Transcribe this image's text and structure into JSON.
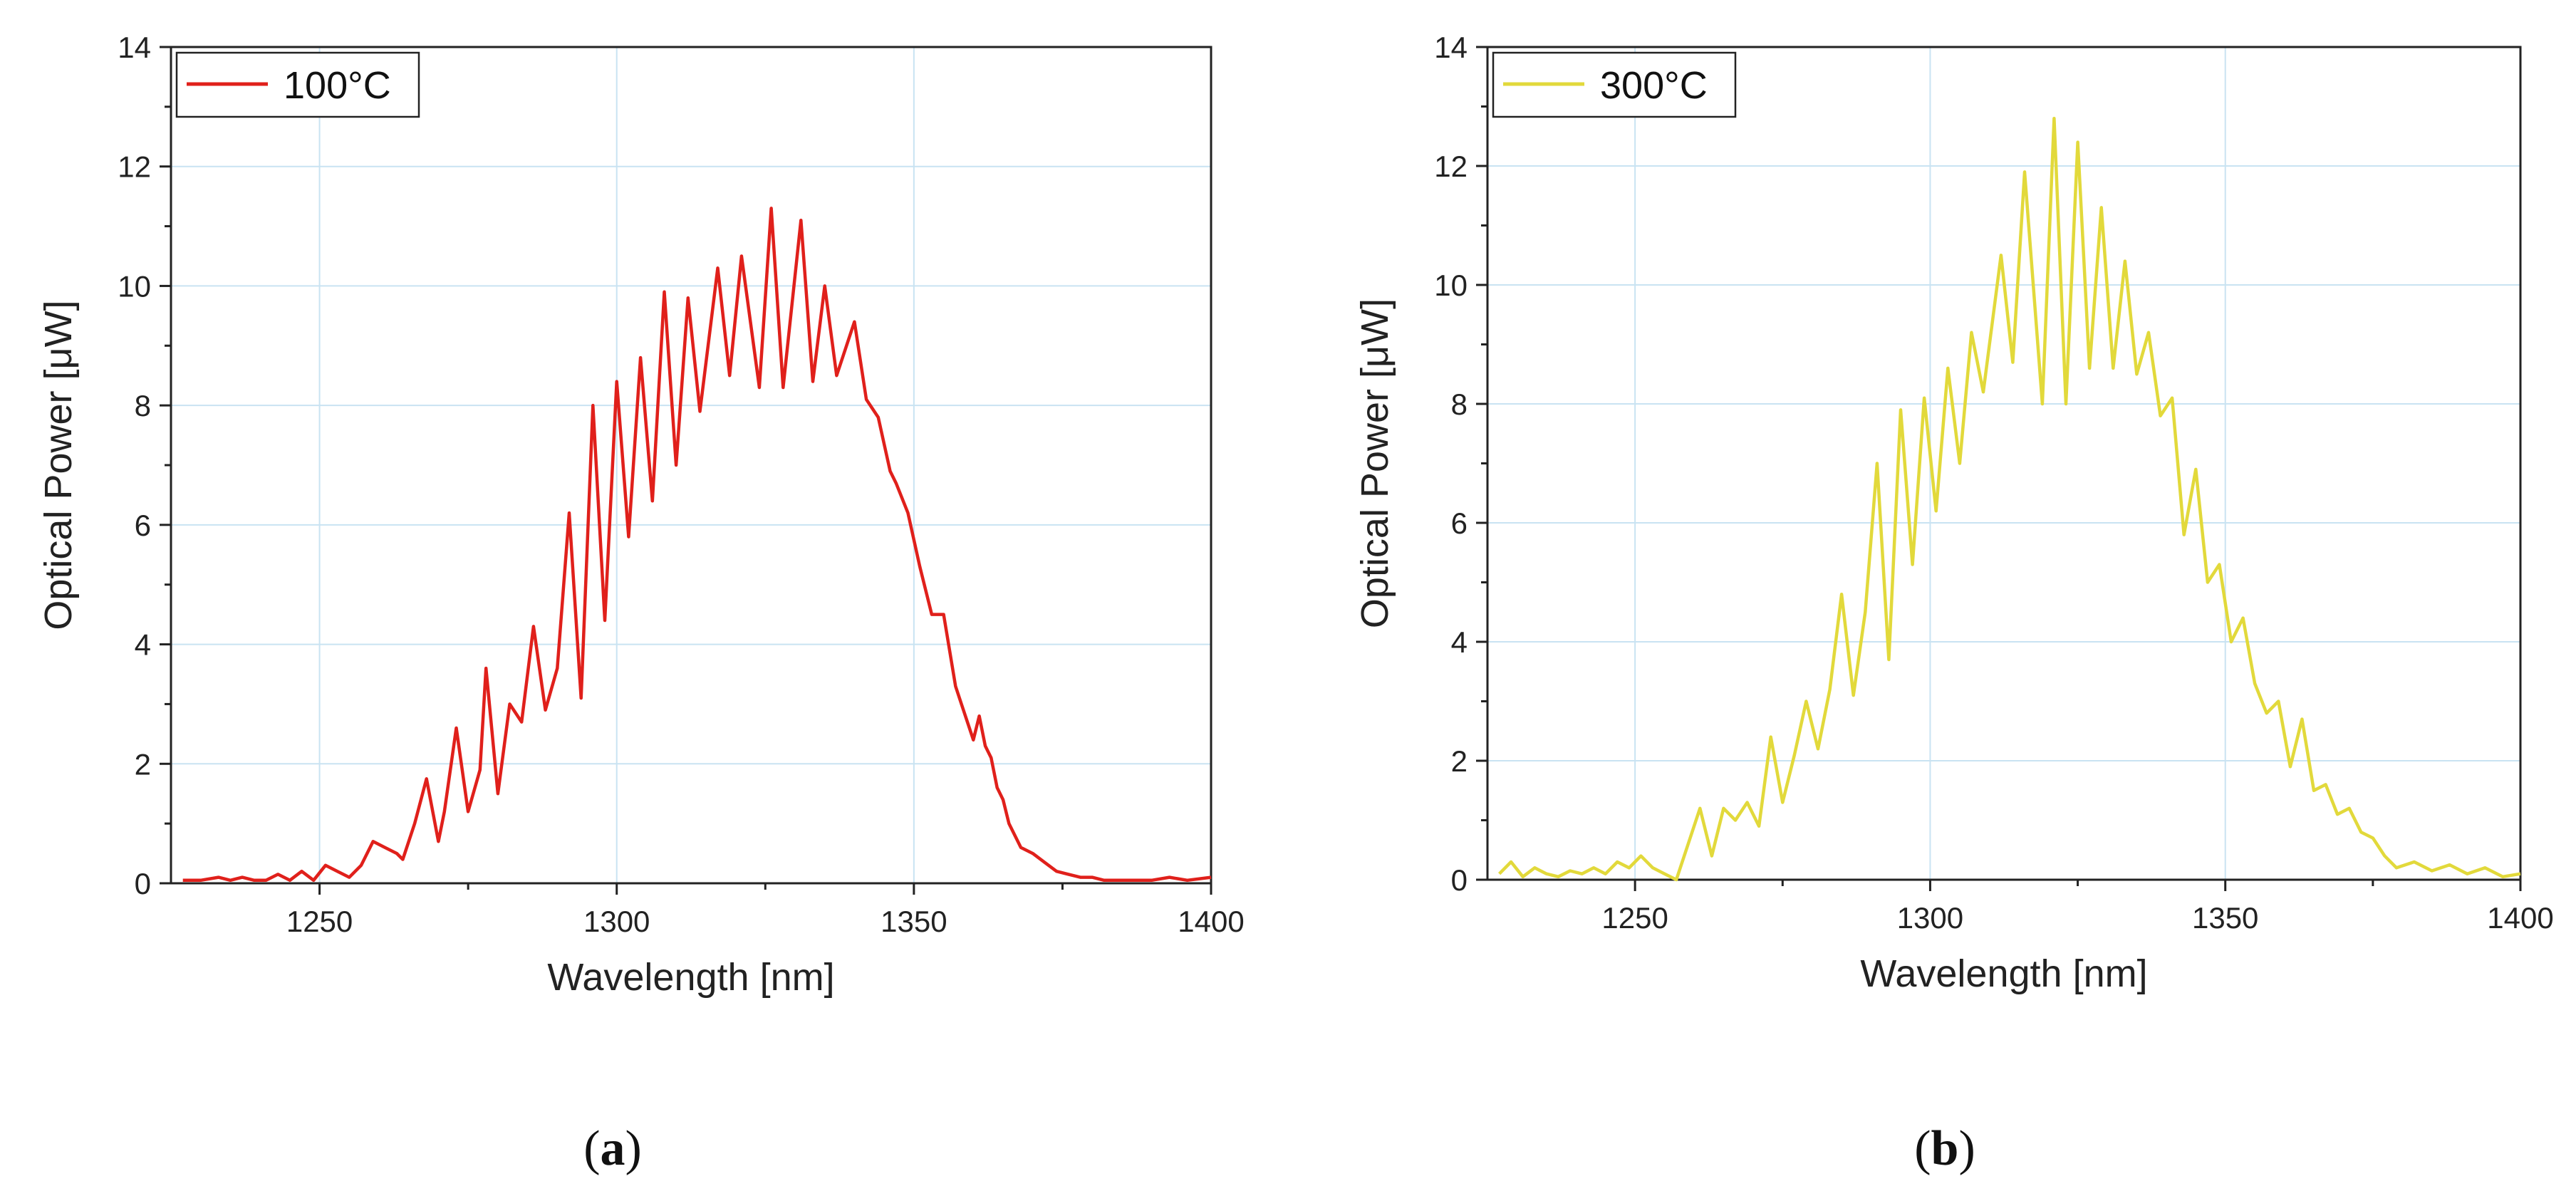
{
  "chart_data": [
    {
      "type": "line",
      "panel": "(a)",
      "caption_open": "(",
      "caption_letter": "a",
      "caption_close": ")",
      "title": "",
      "xlabel": "Wavelength [nm]",
      "ylabel": "Optical Power [μW]",
      "xlim": [
        1225,
        1400
      ],
      "ylim": [
        0,
        14
      ],
      "xticks": [
        1250,
        1300,
        1350,
        1400
      ],
      "yticks": [
        0,
        2,
        4,
        6,
        8,
        10,
        12,
        14
      ],
      "grid": true,
      "legend_position": "top-left",
      "series": [
        {
          "name": "100°C",
          "color": "#e0201b",
          "x": [
            1227,
            1230,
            1233,
            1235,
            1237,
            1239,
            1241,
            1243,
            1245,
            1247,
            1249,
            1251,
            1253,
            1255,
            1257,
            1259,
            1261,
            1263,
            1264,
            1266,
            1268,
            1270,
            1271,
            1273,
            1275,
            1277,
            1278,
            1280,
            1282,
            1284,
            1286,
            1288,
            1290,
            1292,
            1294,
            1296,
            1298,
            1300,
            1302,
            1304,
            1306,
            1308,
            1310,
            1312,
            1314,
            1317,
            1319,
            1321,
            1324,
            1326,
            1328,
            1331,
            1333,
            1335,
            1337,
            1340,
            1342,
            1344,
            1346,
            1347,
            1349,
            1351,
            1353,
            1355,
            1357,
            1358,
            1360,
            1361,
            1362,
            1363,
            1364,
            1365,
            1366,
            1368,
            1370,
            1372,
            1374,
            1376,
            1378,
            1380,
            1382,
            1384,
            1386,
            1388,
            1390,
            1393,
            1396,
            1400
          ],
          "y": [
            0.05,
            0.05,
            0.1,
            0.05,
            0.1,
            0.05,
            0.05,
            0.15,
            0.05,
            0.2,
            0.05,
            0.3,
            0.2,
            0.1,
            0.3,
            0.7,
            0.6,
            0.5,
            0.4,
            1.0,
            1.75,
            0.7,
            1.2,
            2.6,
            1.2,
            1.9,
            3.6,
            1.5,
            3.0,
            2.7,
            4.3,
            2.9,
            3.6,
            6.2,
            3.1,
            8.0,
            4.4,
            8.4,
            5.8,
            8.8,
            6.4,
            9.9,
            7.0,
            9.8,
            7.9,
            10.3,
            8.5,
            10.5,
            8.3,
            11.3,
            8.3,
            11.1,
            8.4,
            10.0,
            8.5,
            9.4,
            8.1,
            7.8,
            6.9,
            6.7,
            6.2,
            5.3,
            4.5,
            4.5,
            3.3,
            3.0,
            2.4,
            2.8,
            2.3,
            2.1,
            1.6,
            1.4,
            1.0,
            0.6,
            0.5,
            0.35,
            0.2,
            0.15,
            0.1,
            0.1,
            0.05,
            0.05,
            0.05,
            0.05,
            0.05,
            0.1,
            0.05,
            0.1
          ]
        }
      ]
    },
    {
      "type": "line",
      "panel": "(b)",
      "caption_open": "(",
      "caption_letter": "b",
      "caption_close": ")",
      "title": "",
      "xlabel": "Wavelength [nm]",
      "ylabel": "Optical Power [μW]",
      "xlim": [
        1225,
        1400
      ],
      "ylim": [
        0,
        14
      ],
      "xticks": [
        1250,
        1300,
        1350,
        1400
      ],
      "yticks": [
        0,
        2,
        4,
        6,
        8,
        10,
        12,
        14
      ],
      "grid": true,
      "legend_position": "top-left",
      "series": [
        {
          "name": "300°C",
          "color": "#e2d93b",
          "x": [
            1227,
            1229,
            1231,
            1233,
            1235,
            1237,
            1239,
            1241,
            1243,
            1245,
            1247,
            1249,
            1251,
            1253,
            1255,
            1257,
            1259,
            1261,
            1263,
            1265,
            1267,
            1269,
            1271,
            1273,
            1275,
            1277,
            1279,
            1281,
            1283,
            1285,
            1287,
            1289,
            1291,
            1293,
            1295,
            1297,
            1299,
            1301,
            1303,
            1305,
            1307,
            1309,
            1312,
            1314,
            1316,
            1319,
            1321,
            1323,
            1325,
            1327,
            1329,
            1331,
            1333,
            1335,
            1337,
            1339,
            1341,
            1343,
            1345,
            1347,
            1349,
            1351,
            1353,
            1355,
            1357,
            1359,
            1361,
            1363,
            1365,
            1367,
            1369,
            1371,
            1373,
            1375,
            1377,
            1379,
            1382,
            1385,
            1388,
            1391,
            1394,
            1397,
            1400
          ],
          "y": [
            0.1,
            0.3,
            0.05,
            0.2,
            0.1,
            0.05,
            0.15,
            0.1,
            0.2,
            0.1,
            0.3,
            0.2,
            0.4,
            0.2,
            0.1,
            0.0,
            0.6,
            1.2,
            0.4,
            1.2,
            1.0,
            1.3,
            0.9,
            2.4,
            1.3,
            2.1,
            3.0,
            2.2,
            3.2,
            4.8,
            3.1,
            4.5,
            7.0,
            3.7,
            7.9,
            5.3,
            8.1,
            6.2,
            8.6,
            7.0,
            9.2,
            8.2,
            10.5,
            8.7,
            11.9,
            8.0,
            12.8,
            8.0,
            12.4,
            8.6,
            11.3,
            8.6,
            10.4,
            8.5,
            9.2,
            7.8,
            8.1,
            5.8,
            6.9,
            5.0,
            5.3,
            4.0,
            4.4,
            3.3,
            2.8,
            3.0,
            1.9,
            2.7,
            1.5,
            1.6,
            1.1,
            1.2,
            0.8,
            0.7,
            0.4,
            0.2,
            0.3,
            0.15,
            0.25,
            0.1,
            0.2,
            0.05,
            0.1
          ]
        }
      ]
    }
  ]
}
